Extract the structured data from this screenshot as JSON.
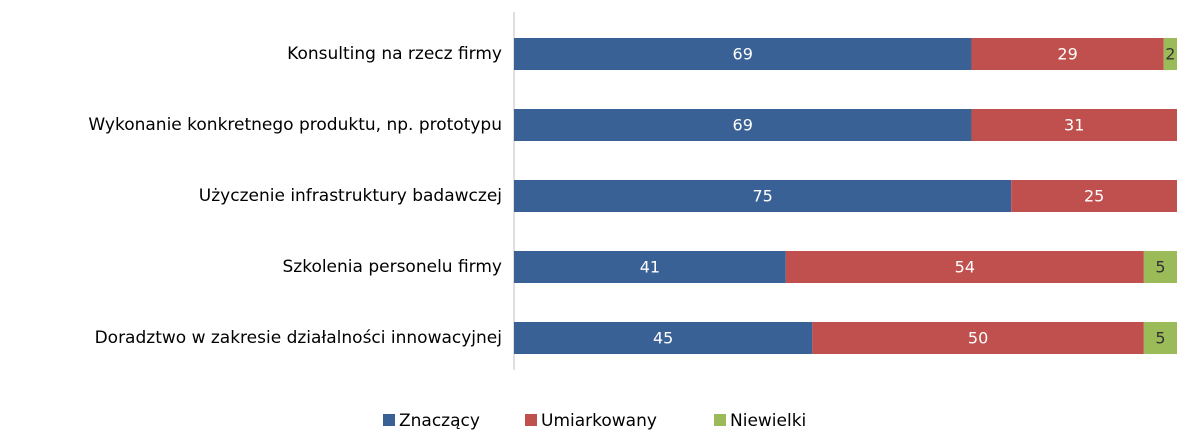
{
  "chart_data": {
    "type": "bar",
    "orientation": "horizontal",
    "stacked": true,
    "categories": [
      "Konsulting na rzecz firmy",
      "Wykonanie konkretnego produktu, np. prototypu",
      "Użyczenie infrastruktury badawczej",
      "Szkolenia personelu firmy",
      "Doradztwo w zakresie działalności innowacyjnej"
    ],
    "series": [
      {
        "name": "Znaczący",
        "color": "#3a6195",
        "values": [
          69,
          69,
          75,
          41,
          45
        ]
      },
      {
        "name": "Umiarkowany",
        "color": "#c0504d",
        "values": [
          29,
          31,
          25,
          54,
          50
        ]
      },
      {
        "name": "Niewielki",
        "color": "#9bbb59",
        "values": [
          2,
          null,
          null,
          5,
          5
        ]
      }
    ],
    "xlim": [
      0,
      100
    ],
    "legend": "bottom"
  }
}
